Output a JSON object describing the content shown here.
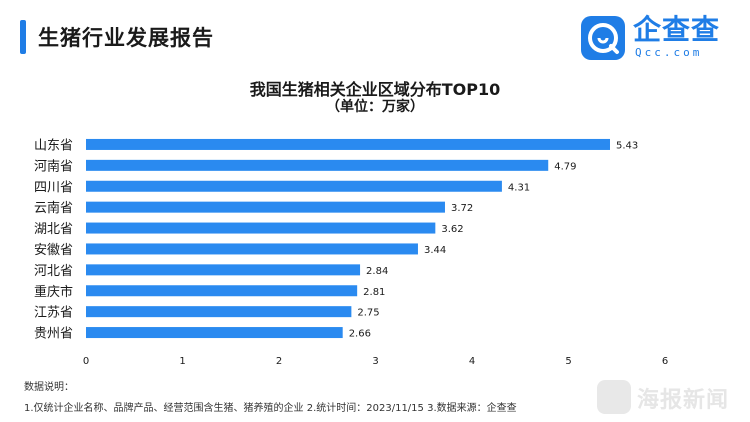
{
  "header": {
    "title": "生猪行业发展报告"
  },
  "logo": {
    "name": "企查查",
    "sub": "Qcc.com"
  },
  "watermark": {
    "text": "海报新闻"
  },
  "colors": {
    "accent": "#1f7de6",
    "bar": "#2a8af0"
  },
  "chart_data": {
    "type": "bar",
    "orientation": "horizontal",
    "title": "我国生猪相关企业区域分布TOP10",
    "subtitle": "（单位：万家）",
    "categories": [
      "山东省",
      "河南省",
      "四川省",
      "云南省",
      "湖北省",
      "安徽省",
      "河北省",
      "重庆市",
      "江苏省",
      "贵州省"
    ],
    "values": [
      5.43,
      4.79,
      4.31,
      3.72,
      3.62,
      3.44,
      2.84,
      2.81,
      2.75,
      2.66
    ],
    "value_labels": [
      "5.43",
      "4.79",
      "4.31",
      "3.72",
      "3.62",
      "3.44",
      "2.84",
      "2.81",
      "2.75",
      "2.66"
    ],
    "xlim": [
      0,
      6
    ],
    "x_ticks": [
      "0",
      "1",
      "2",
      "3",
      "4",
      "5",
      "6"
    ],
    "grid": false,
    "legend": "none"
  },
  "notes": {
    "title": "数据说明：",
    "body": "1.仅统计企业名称、品牌产品、经营范围含生猪、猪养殖的企业  2.统计时间：2023/11/15  3.数据来源：企查查"
  }
}
